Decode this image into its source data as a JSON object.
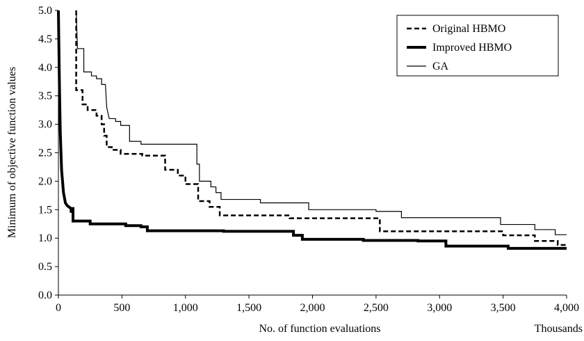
{
  "chart_data": {
    "type": "line",
    "title": "",
    "xlabel": "No. of function evaluations",
    "xunit": "Thousands",
    "ylabel": "Minimum of objective function values",
    "xlim": [
      0,
      4000
    ],
    "ylim": [
      0,
      5.0
    ],
    "x_ticks": [
      0,
      500,
      1000,
      1500,
      2000,
      2500,
      3000,
      3500,
      4000
    ],
    "x_tick_labels": [
      "0",
      "500",
      "1,000",
      "1,500",
      "2,000",
      "2,500",
      "3,000",
      "3,500",
      "4,000"
    ],
    "y_ticks": [
      0,
      0.5,
      1.0,
      1.5,
      2.0,
      2.5,
      3.0,
      3.5,
      4.0,
      4.5,
      5.0
    ],
    "y_tick_labels": [
      "0.0",
      "0.5",
      "1.0",
      "1.5",
      "2.0",
      "2.5",
      "3.0",
      "3.5",
      "4.0",
      "4.5",
      "5.0"
    ],
    "grid": false,
    "legend_position": "top-right",
    "series": [
      {
        "name": "Original HBMO",
        "style": "dashed",
        "color": "#000000",
        "points": [
          [
            140,
            5.0
          ],
          [
            140,
            3.6
          ],
          [
            190,
            3.6
          ],
          [
            190,
            3.35
          ],
          [
            230,
            3.35
          ],
          [
            230,
            3.25
          ],
          [
            300,
            3.25
          ],
          [
            300,
            3.15
          ],
          [
            340,
            3.15
          ],
          [
            340,
            3.0
          ],
          [
            360,
            3.0
          ],
          [
            360,
            2.8
          ],
          [
            380,
            2.8
          ],
          [
            380,
            2.6
          ],
          [
            420,
            2.6
          ],
          [
            420,
            2.55
          ],
          [
            490,
            2.55
          ],
          [
            490,
            2.48
          ],
          [
            660,
            2.48
          ],
          [
            660,
            2.45
          ],
          [
            840,
            2.45
          ],
          [
            840,
            2.2
          ],
          [
            940,
            2.2
          ],
          [
            940,
            2.1
          ],
          [
            1000,
            2.1
          ],
          [
            1000,
            1.95
          ],
          [
            1100,
            1.95
          ],
          [
            1100,
            1.65
          ],
          [
            1190,
            1.65
          ],
          [
            1190,
            1.55
          ],
          [
            1270,
            1.55
          ],
          [
            1270,
            1.4
          ],
          [
            1820,
            1.4
          ],
          [
            1820,
            1.35
          ],
          [
            2530,
            1.35
          ],
          [
            2530,
            1.12
          ],
          [
            3500,
            1.12
          ],
          [
            3500,
            1.05
          ],
          [
            3750,
            1.05
          ],
          [
            3750,
            0.95
          ],
          [
            3930,
            0.95
          ],
          [
            3930,
            0.88
          ],
          [
            4000,
            0.88
          ]
        ]
      },
      {
        "name": "Improved HBMO",
        "style": "thick",
        "color": "#000000",
        "points": [
          [
            0,
            5.0
          ],
          [
            8,
            3.7
          ],
          [
            15,
            2.85
          ],
          [
            25,
            2.2
          ],
          [
            40,
            1.8
          ],
          [
            55,
            1.62
          ],
          [
            70,
            1.57
          ],
          [
            100,
            1.52
          ],
          [
            100,
            1.47
          ],
          [
            110,
            1.47
          ],
          [
            110,
            1.52
          ],
          [
            115,
            1.52
          ],
          [
            115,
            1.3
          ],
          [
            250,
            1.3
          ],
          [
            250,
            1.25
          ],
          [
            530,
            1.25
          ],
          [
            530,
            1.22
          ],
          [
            650,
            1.22
          ],
          [
            650,
            1.2
          ],
          [
            700,
            1.2
          ],
          [
            700,
            1.13
          ],
          [
            1300,
            1.13
          ],
          [
            1300,
            1.12
          ],
          [
            1850,
            1.12
          ],
          [
            1850,
            1.05
          ],
          [
            1920,
            1.05
          ],
          [
            1920,
            0.98
          ],
          [
            2400,
            0.98
          ],
          [
            2400,
            0.96
          ],
          [
            2830,
            0.96
          ],
          [
            2830,
            0.95
          ],
          [
            3050,
            0.95
          ],
          [
            3050,
            0.86
          ],
          [
            3540,
            0.86
          ],
          [
            3540,
            0.82
          ],
          [
            4000,
            0.82
          ]
        ]
      },
      {
        "name": "GA",
        "style": "thin",
        "color": "#000000",
        "points": [
          [
            140,
            5.0
          ],
          [
            150,
            4.33
          ],
          [
            200,
            4.33
          ],
          [
            200,
            3.92
          ],
          [
            260,
            3.92
          ],
          [
            260,
            3.85
          ],
          [
            300,
            3.85
          ],
          [
            300,
            3.8
          ],
          [
            340,
            3.8
          ],
          [
            340,
            3.7
          ],
          [
            370,
            3.7
          ],
          [
            380,
            3.3
          ],
          [
            400,
            3.1
          ],
          [
            450,
            3.1
          ],
          [
            450,
            3.05
          ],
          [
            490,
            3.05
          ],
          [
            490,
            2.98
          ],
          [
            560,
            2.98
          ],
          [
            560,
            2.7
          ],
          [
            650,
            2.7
          ],
          [
            650,
            2.65
          ],
          [
            1090,
            2.65
          ],
          [
            1090,
            2.3
          ],
          [
            1110,
            2.3
          ],
          [
            1110,
            2.0
          ],
          [
            1200,
            2.0
          ],
          [
            1200,
            1.9
          ],
          [
            1240,
            1.9
          ],
          [
            1240,
            1.8
          ],
          [
            1280,
            1.8
          ],
          [
            1280,
            1.68
          ],
          [
            1590,
            1.68
          ],
          [
            1590,
            1.62
          ],
          [
            1970,
            1.62
          ],
          [
            1970,
            1.5
          ],
          [
            2500,
            1.5
          ],
          [
            2500,
            1.47
          ],
          [
            2700,
            1.47
          ],
          [
            2700,
            1.36
          ],
          [
            3480,
            1.36
          ],
          [
            3480,
            1.24
          ],
          [
            3750,
            1.24
          ],
          [
            3750,
            1.15
          ],
          [
            3910,
            1.15
          ],
          [
            3910,
            1.06
          ],
          [
            4000,
            1.06
          ]
        ]
      }
    ]
  }
}
